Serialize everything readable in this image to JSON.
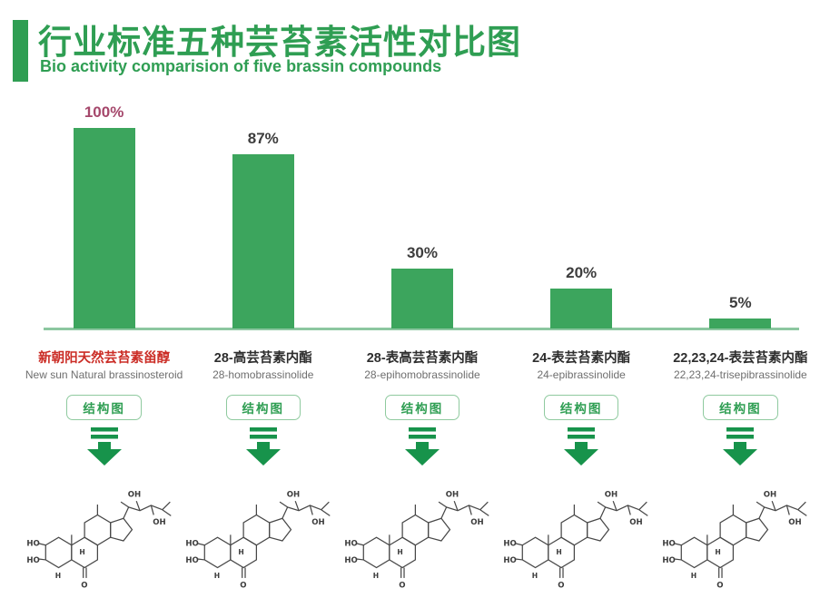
{
  "header": {
    "title_zh": "行业标准五种芸苔素活性对比图",
    "subtitle_en": "Bio activity comparision of five brassin compounds"
  },
  "chart_data": {
    "type": "bar",
    "title": "行业标准五种芸苔素活性对比图",
    "subtitle": "Bio activity comparision of five brassin compounds",
    "categories": [
      "新朝阳天然芸苔素甾醇",
      "28-高芸苔素内酯",
      "28-表高芸苔素内酯",
      "24-表芸苔素内酯",
      "22,23,24-表芸苔素内酯"
    ],
    "categories_en": [
      "New sun Natural brassinosteroid",
      "28-homobrassinolide",
      "28-epihomobrassinolide",
      "24-epibrassinolide",
      "22,23,24-trisepibrassinolide"
    ],
    "values": [
      100,
      87,
      30,
      20,
      5
    ],
    "value_labels": [
      "100%",
      "87%",
      "30%",
      "20%",
      "5%"
    ],
    "ylim": [
      0,
      100
    ],
    "grid": false,
    "legend": "none",
    "bar_color": "#3ca55d",
    "highlighted_value_index": 0
  },
  "compounds": [
    {
      "name_zh": "新朝阳天然芸苔素甾醇",
      "name_en": "New sun Natural brassinosteroid",
      "value_label": "100%"
    },
    {
      "name_zh": "28-高芸苔素内酯",
      "name_en": "28-homobrassinolide",
      "value_label": "87%"
    },
    {
      "name_zh": "28-表高芸苔素内酯",
      "name_en": "28-epihomobrassinolide",
      "value_label": "30%"
    },
    {
      "name_zh": "24-表芸苔素内酯",
      "name_en": "24-epibrassinolide",
      "value_label": "20%"
    },
    {
      "name_zh": "22,23,24-表芸苔素内酯",
      "name_en": "22,23,24-trisepibrassinolide",
      "value_label": "5%"
    }
  ],
  "structure_button_label": "结构图",
  "atom_labels": {
    "ho": "HO",
    "oh": "OH",
    "o": "O",
    "h": "H"
  },
  "colors": {
    "brand_green": "#2f9e53",
    "bar_green": "#3ca55d",
    "baseline_green": "#8cc7a0",
    "arrow_green": "#17934b",
    "button_border_green": "#8fca9f",
    "highlight_value": "#a5476b",
    "value_text": "#3d3d3d",
    "compound_red": "#cb2d26",
    "compound_dark": "#2e2e2e",
    "compound_en_gray": "#6e6e6e",
    "structure_ink": "#474747"
  }
}
